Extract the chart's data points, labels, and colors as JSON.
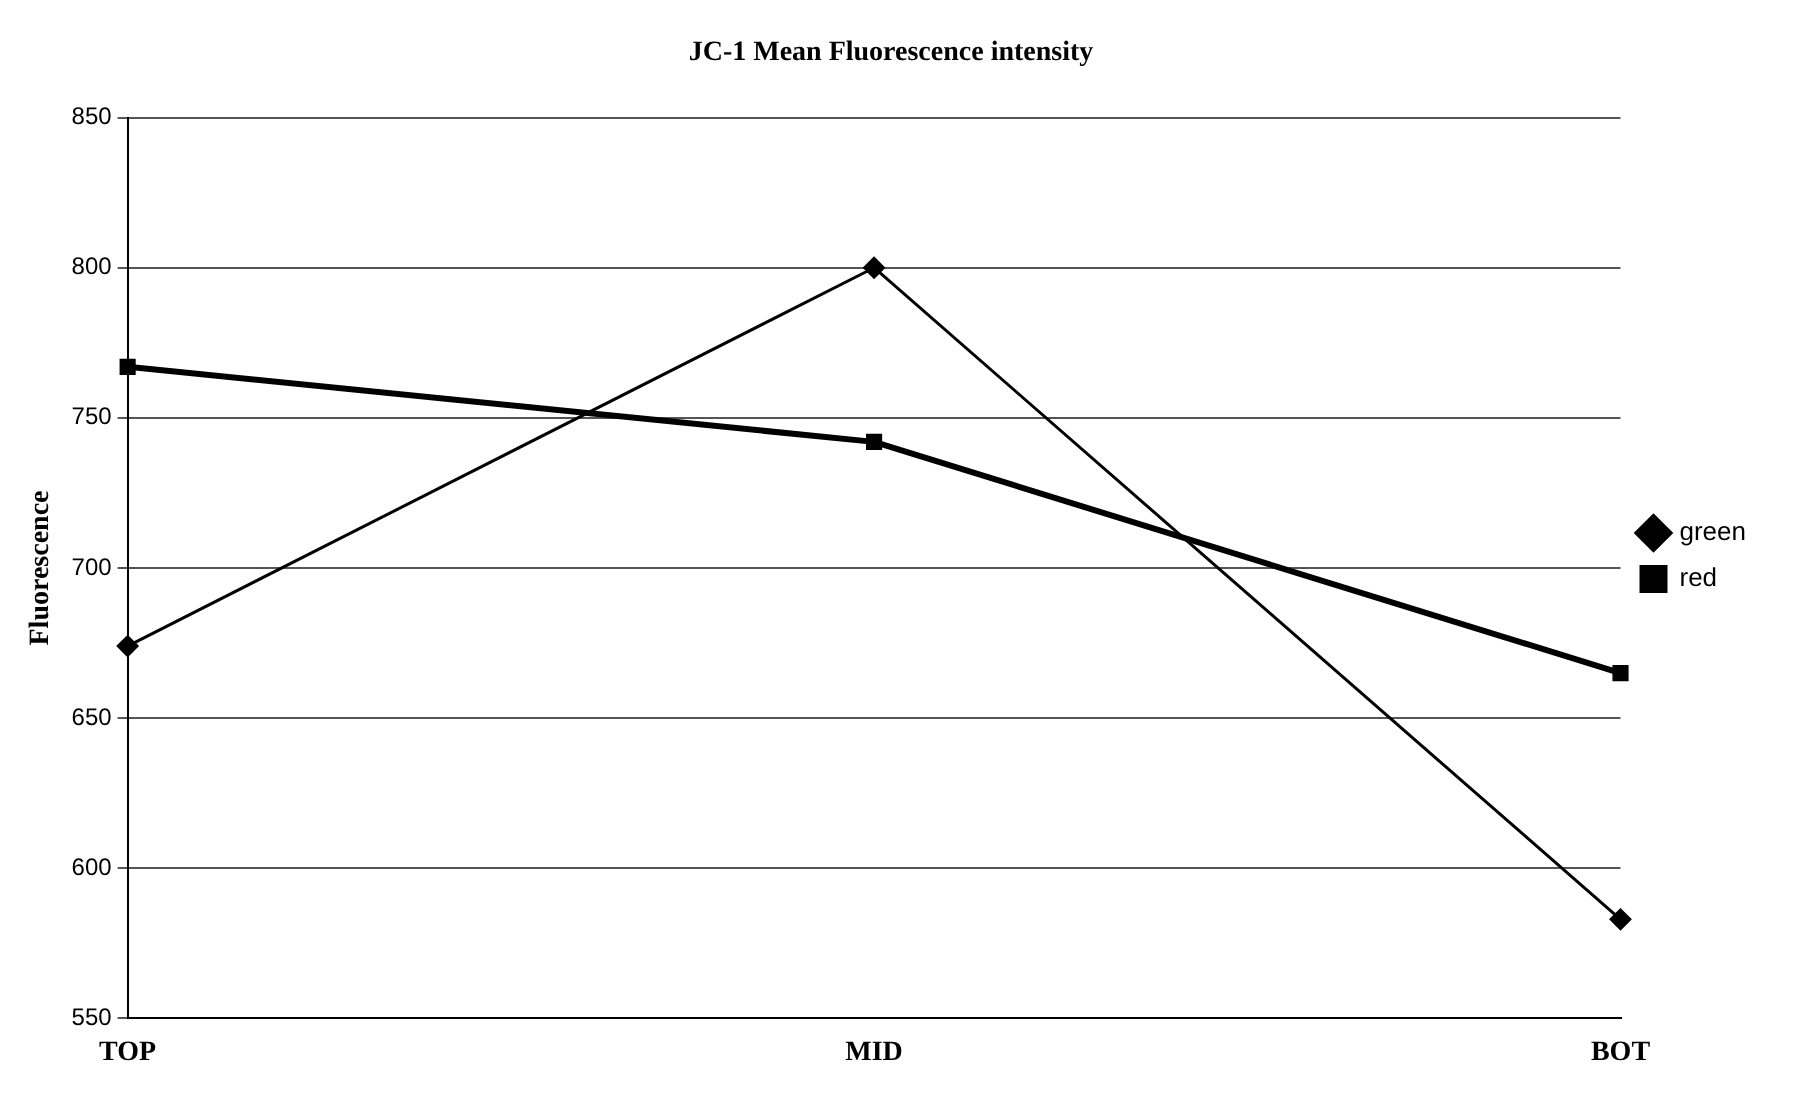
{
  "chart_data": {
    "type": "line",
    "title": "JC-1 Mean Fluorescence intensity",
    "ylabel": "Fluorescence",
    "categories": [
      "TOP",
      "MID",
      "BOT"
    ],
    "series": [
      {
        "name": "green",
        "color": "#000000",
        "marker": "diamond",
        "values": [
          674,
          800,
          583
        ]
      },
      {
        "name": "red",
        "color": "#000000",
        "marker": "square",
        "values": [
          767,
          742,
          665
        ]
      }
    ],
    "ylim": [
      550,
      850
    ],
    "yticks": [
      550,
      600,
      650,
      700,
      750,
      800,
      850
    ],
    "grid": "y",
    "legend": "right"
  }
}
